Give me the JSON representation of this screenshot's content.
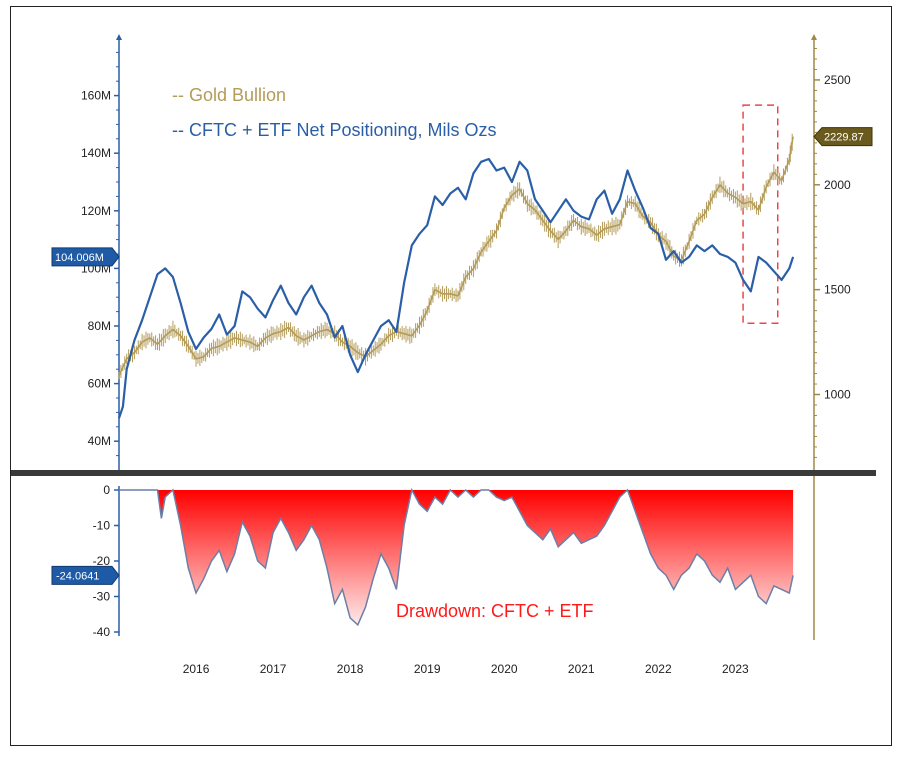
{
  "colors": {
    "gold": "#b39b58",
    "positioning": "#2a5fa8",
    "drawdown_fill": "#ff0000",
    "drawdown_line": "#6b7fa8",
    "axis_left": "#2a5fa8",
    "axis_right": "#a08848",
    "highlight_box": "#e8484c",
    "panel_divider": "#3a3a3a"
  },
  "chart_data": [
    {
      "type": "line",
      "title": "",
      "legend": [
        "-- Gold Bullion",
        "-- CFTC + ETF Net Positioning, Mils Ozs"
      ],
      "legend_placement": "top-left",
      "x_tick_labels": [
        "2016",
        "2017",
        "2018",
        "2019",
        "2020",
        "2021",
        "2022",
        "2023"
      ],
      "x_range": [
        2015.5,
        2024.3
      ],
      "left_axis": {
        "ticks": [
          40,
          60,
          80,
          100,
          120,
          140,
          160
        ],
        "tick_labels": [
          "40M",
          "60M",
          "80M",
          "100M",
          "120M",
          "140M",
          "160M"
        ],
        "range": [
          30,
          180
        ],
        "last_value_label": "104.006M",
        "last_value": 104.006
      },
      "right_axis": {
        "ticks": [
          1000,
          1500,
          2000,
          2500
        ],
        "tick_labels": [
          "1000",
          "1500",
          "2000",
          "2500"
        ],
        "range": [
          640,
          2700
        ],
        "last_value_label": "2229.87",
        "last_value": 2229.87
      },
      "series": [
        {
          "name": "Gold Bullion",
          "axis": "right",
          "x": [
            2015.5,
            2015.6,
            2015.7,
            2015.8,
            2015.9,
            2016.0,
            2016.1,
            2016.2,
            2016.3,
            2016.4,
            2016.5,
            2016.6,
            2016.7,
            2016.8,
            2016.9,
            2017.0,
            2017.1,
            2017.2,
            2017.3,
            2017.4,
            2017.5,
            2017.6,
            2017.7,
            2017.8,
            2017.9,
            2018.0,
            2018.1,
            2018.2,
            2018.3,
            2018.4,
            2018.5,
            2018.6,
            2018.7,
            2018.8,
            2018.9,
            2019.0,
            2019.1,
            2019.2,
            2019.3,
            2019.4,
            2019.5,
            2019.6,
            2019.7,
            2019.8,
            2019.9,
            2020.0,
            2020.1,
            2020.2,
            2020.3,
            2020.4,
            2020.5,
            2020.6,
            2020.7,
            2020.8,
            2020.9,
            2021.0,
            2021.1,
            2021.2,
            2021.3,
            2021.4,
            2021.5,
            2021.6,
            2021.7,
            2021.8,
            2021.9,
            2022.0,
            2022.1,
            2022.2,
            2022.3,
            2022.4,
            2022.5,
            2022.6,
            2022.7,
            2022.8,
            2022.9,
            2023.0,
            2023.1,
            2023.2,
            2023.3,
            2023.4,
            2023.5,
            2023.6,
            2023.7,
            2023.8,
            2023.9,
            2024.0,
            2024.1,
            2024.2,
            2024.25
          ],
          "values": [
            1090,
            1170,
            1200,
            1250,
            1270,
            1240,
            1280,
            1310,
            1280,
            1230,
            1170,
            1180,
            1220,
            1230,
            1250,
            1270,
            1260,
            1250,
            1230,
            1270,
            1290,
            1300,
            1320,
            1280,
            1260,
            1280,
            1300,
            1310,
            1290,
            1250,
            1230,
            1200,
            1180,
            1210,
            1240,
            1280,
            1300,
            1290,
            1280,
            1330,
            1400,
            1500,
            1480,
            1480,
            1470,
            1560,
            1600,
            1680,
            1730,
            1780,
            1890,
            1950,
            1980,
            1910,
            1880,
            1830,
            1780,
            1740,
            1780,
            1830,
            1800,
            1790,
            1760,
            1790,
            1800,
            1810,
            1920,
            1910,
            1850,
            1820,
            1760,
            1730,
            1660,
            1640,
            1730,
            1830,
            1860,
            1940,
            2000,
            1960,
            1940,
            1910,
            1920,
            1880,
            1990,
            2060,
            2020,
            2120,
            2229.87
          ]
        },
        {
          "name": "CFTC + ETF Net Positioning, Mils Ozs",
          "axis": "left",
          "x": [
            2015.5,
            2015.55,
            2015.6,
            2015.7,
            2015.8,
            2015.9,
            2016.0,
            2016.1,
            2016.2,
            2016.3,
            2016.4,
            2016.5,
            2016.6,
            2016.7,
            2016.8,
            2016.9,
            2017.0,
            2017.1,
            2017.2,
            2017.3,
            2017.4,
            2017.5,
            2017.6,
            2017.7,
            2017.8,
            2017.9,
            2018.0,
            2018.1,
            2018.2,
            2018.3,
            2018.4,
            2018.5,
            2018.6,
            2018.7,
            2018.8,
            2018.9,
            2019.0,
            2019.1,
            2019.2,
            2019.3,
            2019.4,
            2019.5,
            2019.6,
            2019.7,
            2019.8,
            2019.9,
            2020.0,
            2020.1,
            2020.2,
            2020.3,
            2020.4,
            2020.5,
            2020.6,
            2020.7,
            2020.8,
            2020.9,
            2021.0,
            2021.1,
            2021.2,
            2021.3,
            2021.4,
            2021.5,
            2021.6,
            2021.7,
            2021.8,
            2021.9,
            2022.0,
            2022.1,
            2022.2,
            2022.3,
            2022.4,
            2022.5,
            2022.6,
            2022.7,
            2022.8,
            2022.9,
            2023.0,
            2023.1,
            2023.2,
            2023.3,
            2023.4,
            2023.5,
            2023.6,
            2023.7,
            2023.8,
            2023.9,
            2024.0,
            2024.1,
            2024.2,
            2024.25
          ],
          "values": [
            48,
            52,
            65,
            75,
            82,
            90,
            98,
            100,
            97,
            88,
            78,
            72,
            76,
            79,
            84,
            77,
            80,
            92,
            90,
            86,
            83,
            89,
            94,
            88,
            84,
            90,
            94,
            88,
            84,
            76,
            80,
            70,
            64,
            70,
            75,
            80,
            82,
            78,
            95,
            108,
            112,
            115,
            125,
            122,
            126,
            128,
            124,
            133,
            137,
            138,
            134,
            135,
            130,
            137,
            134,
            124,
            120,
            116,
            120,
            124,
            120,
            118,
            117,
            124,
            127,
            119,
            124,
            134,
            127,
            121,
            114,
            112,
            103,
            106,
            102,
            104,
            108,
            106,
            108,
            105,
            104,
            102,
            96,
            92,
            104,
            102,
            99,
            96,
            100,
            104.006
          ]
        }
      ],
      "highlight_box": {
        "x_range": [
          2023.6,
          2024.05
        ],
        "right_axis_range": [
          1340,
          2380
        ]
      }
    },
    {
      "type": "area",
      "title": "",
      "label": "Drawdown: CFTC + ETF",
      "x_tick_labels": [
        "2016",
        "2017",
        "2018",
        "2019",
        "2020",
        "2021",
        "2022",
        "2023"
      ],
      "x_range": [
        2015.5,
        2024.3
      ],
      "y_axis": {
        "ticks": [
          0,
          -10,
          -20,
          -30,
          -40
        ],
        "tick_labels": [
          "0",
          "-10",
          "-20",
          "-30",
          "-40"
        ],
        "range": [
          -42,
          0
        ],
        "last_value_label": "-24.0641",
        "last_value": -24.0641
      },
      "series": [
        {
          "name": "Drawdown: CFTC + ETF",
          "x": [
            2015.5,
            2015.8,
            2016.0,
            2016.05,
            2016.1,
            2016.2,
            2016.3,
            2016.4,
            2016.5,
            2016.6,
            2016.7,
            2016.8,
            2016.9,
            2017.0,
            2017.1,
            2017.2,
            2017.3,
            2017.4,
            2017.5,
            2017.6,
            2017.7,
            2017.8,
            2017.9,
            2018.0,
            2018.1,
            2018.2,
            2018.3,
            2018.4,
            2018.5,
            2018.6,
            2018.7,
            2018.8,
            2018.9,
            2019.0,
            2019.1,
            2019.2,
            2019.3,
            2019.4,
            2019.5,
            2019.6,
            2019.7,
            2019.8,
            2019.9,
            2020.0,
            2020.1,
            2020.2,
            2020.3,
            2020.4,
            2020.5,
            2020.6,
            2020.7,
            2020.8,
            2020.9,
            2021.0,
            2021.1,
            2021.2,
            2021.3,
            2021.4,
            2021.5,
            2021.6,
            2021.7,
            2021.8,
            2021.9,
            2022.0,
            2022.1,
            2022.2,
            2022.3,
            2022.4,
            2022.5,
            2022.6,
            2022.7,
            2022.8,
            2022.9,
            2023.0,
            2023.1,
            2023.2,
            2023.3,
            2023.4,
            2023.5,
            2023.6,
            2023.7,
            2023.8,
            2023.9,
            2024.0,
            2024.1,
            2024.2,
            2024.25
          ],
          "values": [
            0,
            0,
            0,
            -8,
            -2,
            0,
            -10,
            -22,
            -29,
            -25,
            -20,
            -17,
            -23,
            -18,
            -9,
            -13,
            -20,
            -22,
            -12,
            -8,
            -12,
            -17,
            -14,
            -10,
            -14,
            -22,
            -32,
            -28,
            -36,
            -38,
            -33,
            -25,
            -18,
            -22,
            -28,
            -10,
            0,
            -4,
            -6,
            -2,
            -4,
            0,
            -2,
            0,
            -2,
            0,
            0,
            -2,
            -3,
            -2,
            -6,
            -10,
            -12,
            -14,
            -11,
            -16,
            -14,
            -12,
            -15,
            -14,
            -13,
            -10,
            -6,
            -2,
            0,
            -6,
            -12,
            -18,
            -22,
            -24,
            -28,
            -24,
            -22,
            -18,
            -20,
            -24,
            -26,
            -22,
            -28,
            -26,
            -24,
            -30,
            -32,
            -27,
            -28,
            -29,
            -24.0641
          ]
        }
      ]
    }
  ]
}
